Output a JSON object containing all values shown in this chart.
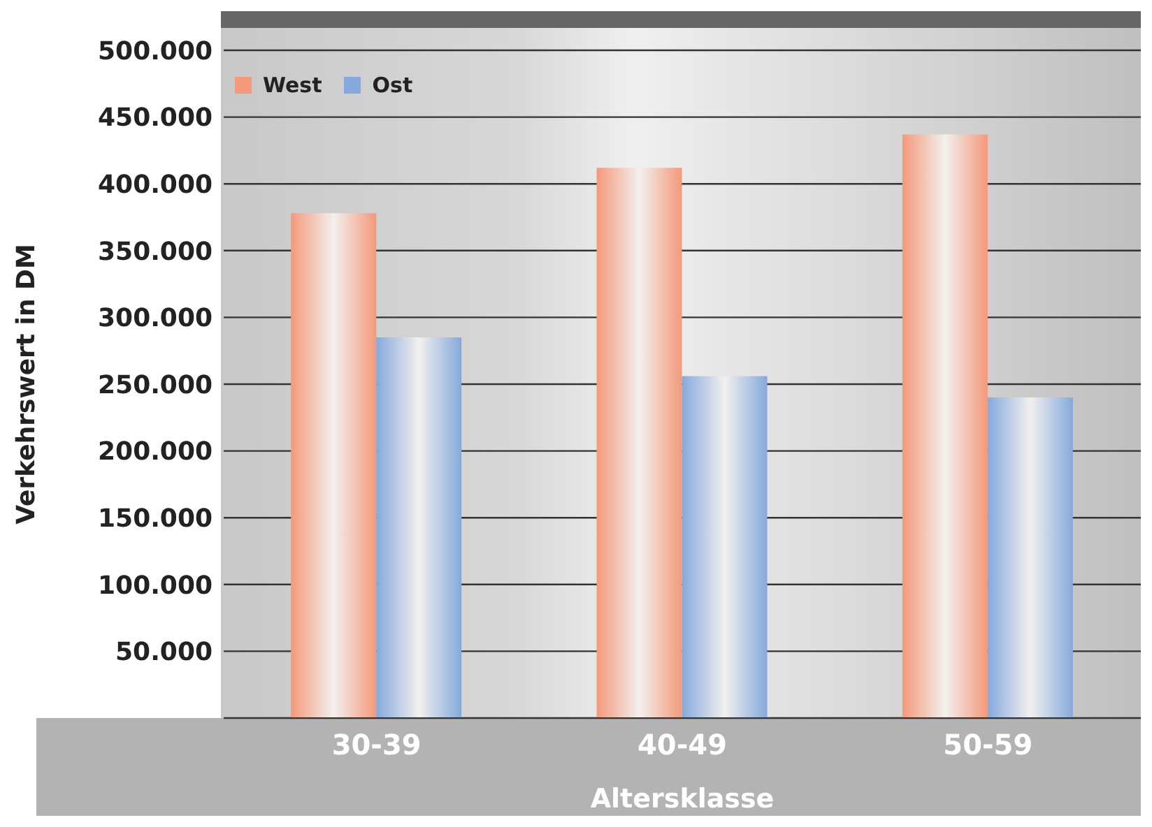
{
  "chart_data": {
    "type": "bar",
    "xlabel": "Altersklasse",
    "ylabel": "Verkehrswert in DM",
    "categories": [
      "30-39",
      "40-49",
      "50-59"
    ],
    "series": [
      {
        "name": "West",
        "color": "#f4997a",
        "values": [
          378000,
          412000,
          437000
        ]
      },
      {
        "name": "Ost",
        "color": "#85a9dc",
        "values": [
          285000,
          256000,
          240000
        ]
      }
    ],
    "ylim": [
      0,
      500000
    ],
    "yticks": [
      {
        "value": 50000,
        "label": "50.000"
      },
      {
        "value": 100000,
        "label": "100.000"
      },
      {
        "value": 150000,
        "label": "150.000"
      },
      {
        "value": 200000,
        "label": "200.000"
      },
      {
        "value": 250000,
        "label": "250.000"
      },
      {
        "value": 300000,
        "label": "300.000"
      },
      {
        "value": 350000,
        "label": "350.000"
      },
      {
        "value": 400000,
        "label": "400.000"
      },
      {
        "value": 450000,
        "label": "450.000"
      },
      {
        "value": 500000,
        "label": "500.000"
      }
    ],
    "grid": "y",
    "legend": "top left"
  }
}
